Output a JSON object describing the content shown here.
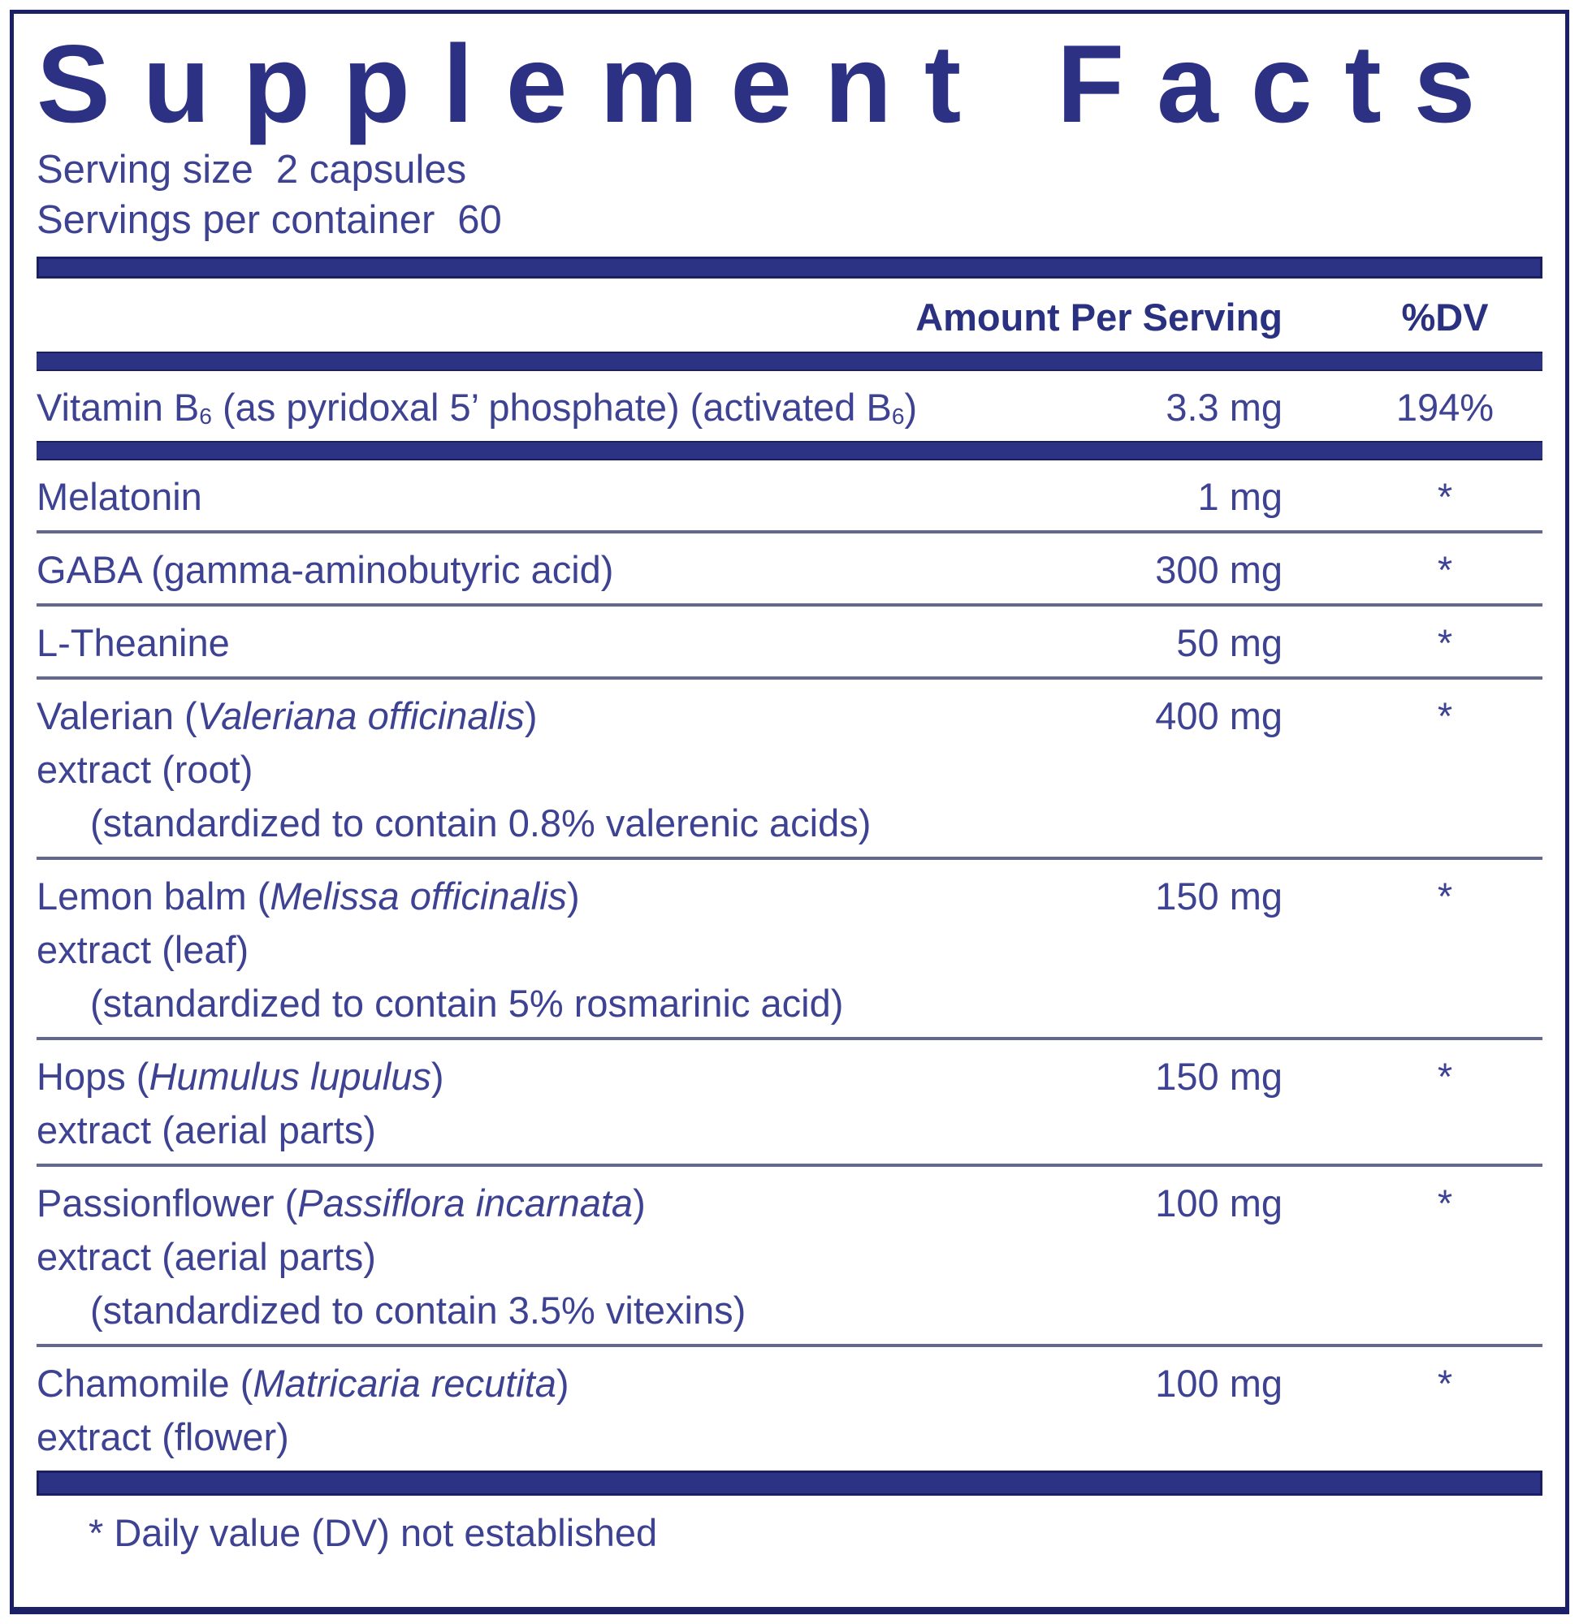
{
  "title": "Supplement Facts",
  "serving_size": {
    "label": "Serving size",
    "value": "2 capsules"
  },
  "servings_per_container": {
    "label": "Servings per container",
    "value": "60"
  },
  "column_headers": {
    "amount": "Amount Per Serving",
    "dv": "%DV"
  },
  "rows": [
    {
      "separator_before": "bar",
      "lines": [
        {
          "indent": false,
          "segments": [
            {
              "t": "Vitamin B"
            },
            {
              "t": "6",
              "sub": true
            },
            {
              "t": " (as pyridoxal 5’ phosphate) (activated B"
            },
            {
              "t": "6",
              "sub": true
            },
            {
              "t": ")"
            }
          ]
        }
      ],
      "amount": "3.3 mg",
      "dv": "194%"
    },
    {
      "separator_before": "bar",
      "lines": [
        {
          "indent": false,
          "segments": [
            {
              "t": "Melatonin"
            }
          ]
        }
      ],
      "amount": "1 mg",
      "dv": "*"
    },
    {
      "separator_before": "line",
      "lines": [
        {
          "indent": false,
          "segments": [
            {
              "t": "GABA (gamma-aminobutyric acid)"
            }
          ]
        }
      ],
      "amount": "300 mg",
      "dv": "*"
    },
    {
      "separator_before": "line",
      "lines": [
        {
          "indent": false,
          "segments": [
            {
              "t": "L-Theanine"
            }
          ]
        }
      ],
      "amount": "50 mg",
      "dv": "*"
    },
    {
      "separator_before": "line",
      "lines": [
        {
          "indent": false,
          "segments": [
            {
              "t": "Valerian ("
            },
            {
              "t": "Valeriana officinalis",
              "i": true
            },
            {
              "t": ")"
            }
          ]
        },
        {
          "indent": false,
          "segments": [
            {
              "t": "extract (root)"
            }
          ]
        },
        {
          "indent": true,
          "segments": [
            {
              "t": "(standardized to contain 0.8% valerenic acids)"
            }
          ]
        }
      ],
      "amount": "400 mg",
      "dv": "*"
    },
    {
      "separator_before": "line",
      "lines": [
        {
          "indent": false,
          "segments": [
            {
              "t": "Lemon balm ("
            },
            {
              "t": "Melissa officinalis",
              "i": true
            },
            {
              "t": ")"
            }
          ]
        },
        {
          "indent": false,
          "segments": [
            {
              "t": "extract (leaf)"
            }
          ]
        },
        {
          "indent": true,
          "segments": [
            {
              "t": "(standardized to contain 5% rosmarinic acid)"
            }
          ]
        }
      ],
      "amount": "150 mg",
      "dv": "*"
    },
    {
      "separator_before": "line",
      "lines": [
        {
          "indent": false,
          "segments": [
            {
              "t": "Hops ("
            },
            {
              "t": "Humulus lupulus",
              "i": true
            },
            {
              "t": ")"
            }
          ]
        },
        {
          "indent": false,
          "segments": [
            {
              "t": "extract (aerial parts)"
            }
          ]
        }
      ],
      "amount": "150 mg",
      "dv": "*"
    },
    {
      "separator_before": "line",
      "lines": [
        {
          "indent": false,
          "segments": [
            {
              "t": "Passionflower ("
            },
            {
              "t": "Passiflora incarnata",
              "i": true
            },
            {
              "t": ")"
            }
          ]
        },
        {
          "indent": false,
          "segments": [
            {
              "t": "extract (aerial parts)"
            }
          ]
        },
        {
          "indent": true,
          "segments": [
            {
              "t": "(standardized to contain 3.5% vitexins)"
            }
          ]
        }
      ],
      "amount": "100 mg",
      "dv": "*"
    },
    {
      "separator_before": "line",
      "lines": [
        {
          "indent": false,
          "segments": [
            {
              "t": "Chamomile ("
            },
            {
              "t": "Matricaria recutita",
              "i": true
            },
            {
              "t": ")"
            }
          ]
        },
        {
          "indent": false,
          "segments": [
            {
              "t": "extract (flower)"
            }
          ]
        }
      ],
      "amount": "100 mg",
      "dv": "*"
    }
  ],
  "footnote": "* Daily value (DV) not established",
  "colors": {
    "navy": "#2d3384",
    "navy_dark": "#1a1e63",
    "text": "#3d4292",
    "divider": "#63688e",
    "background": "#ffffff"
  }
}
